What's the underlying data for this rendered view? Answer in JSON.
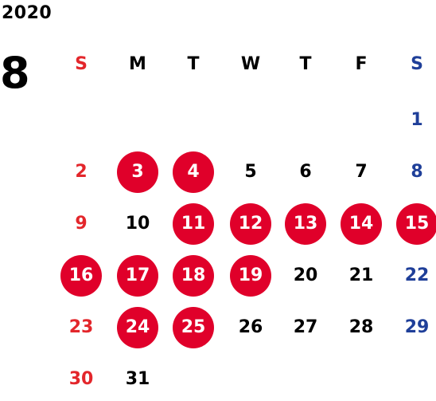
{
  "year": "2020",
  "month": "8",
  "colors": {
    "sunday": "#e3262b",
    "saturday": "#1f3f99",
    "weekday": "#000000",
    "highlight_bg": "#e0002a",
    "highlight_text": "#ffffff"
  },
  "weekdays": [
    "S",
    "M",
    "T",
    "W",
    "T",
    "F",
    "S"
  ],
  "weeks": [
    [
      null,
      null,
      null,
      null,
      null,
      null,
      {
        "label": "1",
        "highlight": false
      }
    ],
    [
      {
        "label": "2",
        "highlight": false
      },
      {
        "label": "3",
        "highlight": true
      },
      {
        "label": "4",
        "highlight": true
      },
      {
        "label": "5",
        "highlight": false
      },
      {
        "label": "6",
        "highlight": false
      },
      {
        "label": "7",
        "highlight": false
      },
      {
        "label": "8",
        "highlight": false
      }
    ],
    [
      {
        "label": "9",
        "highlight": false
      },
      {
        "label": "10",
        "highlight": false
      },
      {
        "label": "11",
        "highlight": true
      },
      {
        "label": "12",
        "highlight": true
      },
      {
        "label": "13",
        "highlight": true
      },
      {
        "label": "14",
        "highlight": true
      },
      {
        "label": "15",
        "highlight": true
      }
    ],
    [
      {
        "label": "16",
        "highlight": true
      },
      {
        "label": "17",
        "highlight": true
      },
      {
        "label": "18",
        "highlight": true
      },
      {
        "label": "19",
        "highlight": true
      },
      {
        "label": "20",
        "highlight": false
      },
      {
        "label": "21",
        "highlight": false
      },
      {
        "label": "22",
        "highlight": false
      }
    ],
    [
      {
        "label": "23",
        "highlight": false
      },
      {
        "label": "24",
        "highlight": true
      },
      {
        "label": "25",
        "highlight": true
      },
      {
        "label": "26",
        "highlight": false
      },
      {
        "label": "27",
        "highlight": false
      },
      {
        "label": "28",
        "highlight": false
      },
      {
        "label": "29",
        "highlight": false
      }
    ],
    [
      {
        "label": "30",
        "highlight": false
      },
      {
        "label": "31",
        "highlight": false
      },
      null,
      null,
      null,
      null,
      null
    ]
  ]
}
